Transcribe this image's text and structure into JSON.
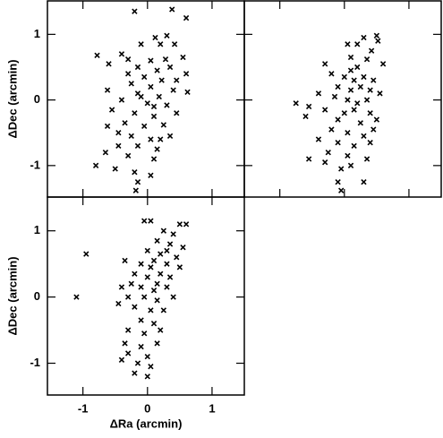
{
  "chart_data": [
    {
      "type": "scatter",
      "ylabel": "ΔDec (arcmin)",
      "xlim": [
        -1.55,
        1.5
      ],
      "ylim": [
        -1.48,
        1.51
      ],
      "xticks": [
        -1,
        0,
        1
      ],
      "yticks": [
        -1,
        0,
        1
      ],
      "xticklabels": false,
      "yticklabels": true,
      "color": "#000000",
      "x": [
        -0.2,
        0.6,
        0.38,
        0.12,
        0.3,
        -0.4,
        -0.1,
        0.2,
        0.42,
        -0.78,
        -0.3,
        0.05,
        0.28,
        0.55,
        -0.6,
        -0.15,
        0.15,
        0.35,
        -0.05,
        0.22,
        0.6,
        -0.62,
        -0.25,
        0.05,
        0.4,
        0.62,
        -0.15,
        0.18,
        -0.4,
        0.0,
        0.3,
        -0.55,
        -0.2,
        0.1,
        0.45,
        -0.35,
        -0.05,
        0.25,
        -0.62,
        -0.25,
        0.05,
        0.35,
        -0.45,
        -0.15,
        0.15,
        -0.65,
        -0.3,
        0.1,
        -0.8,
        -0.5,
        -0.2,
        0.05,
        -0.15,
        -0.18,
        -0.1,
        0.1,
        -0.3,
        0.45,
        -0.45,
        0.2
      ],
      "y": [
        1.35,
        1.25,
        1.38,
        0.95,
        0.98,
        0.7,
        0.85,
        0.85,
        0.85,
        0.68,
        0.62,
        0.6,
        0.62,
        0.65,
        0.55,
        0.5,
        0.45,
        0.5,
        0.35,
        0.3,
        0.4,
        0.15,
        0.25,
        0.2,
        0.15,
        0.12,
        0.1,
        0.05,
        0.0,
        -0.05,
        -0.08,
        -0.15,
        -0.2,
        -0.25,
        -0.2,
        -0.35,
        -0.4,
        -0.38,
        -0.4,
        -0.55,
        -0.6,
        -0.55,
        -0.7,
        -0.7,
        -0.75,
        -0.8,
        -0.85,
        -0.9,
        -1.0,
        -1.05,
        -1.1,
        -1.15,
        -1.25,
        -1.38,
        0.05,
        -0.1,
        0.4,
        0.3,
        -0.5,
        -0.6
      ]
    },
    {
      "type": "scatter",
      "xlim": [
        -1.55,
        1.5
      ],
      "ylim": [
        -1.48,
        1.51
      ],
      "xticks": [
        -1,
        0,
        1
      ],
      "yticks": [
        -1,
        0,
        1
      ],
      "xticklabels": false,
      "yticklabels": false,
      "color": "#000000",
      "x": [
        0.3,
        0.5,
        0.52,
        0.05,
        0.2,
        0.42,
        0.1,
        0.35,
        0.6,
        -0.2,
        0.0,
        0.15,
        0.3,
        0.45,
        -0.1,
        0.1,
        0.25,
        0.4,
        0.55,
        -0.4,
        -0.15,
        0.05,
        0.2,
        0.35,
        -0.75,
        -0.55,
        -0.3,
        0.0,
        0.15,
        0.4,
        -0.6,
        -0.1,
        0.25,
        0.5,
        -0.2,
        0.05,
        0.3,
        -0.4,
        -0.1,
        0.15,
        0.4,
        -0.25,
        0.05,
        -0.55,
        -0.3,
        0.1,
        -0.05,
        -0.1,
        0.3,
        -0.05,
        0.2,
        0.1,
        -0.3,
        0.35,
        0.45
      ],
      "y": [
        0.95,
        0.98,
        0.9,
        0.85,
        0.85,
        0.75,
        0.65,
        0.62,
        0.55,
        0.4,
        0.35,
        0.3,
        0.35,
        0.3,
        0.2,
        0.15,
        0.2,
        0.15,
        0.1,
        0.1,
        0.05,
        0.0,
        -0.05,
        0.0,
        -0.05,
        -0.1,
        -0.15,
        -0.2,
        -0.15,
        -0.2,
        -0.25,
        -0.3,
        -0.35,
        -0.3,
        -0.45,
        -0.5,
        -0.55,
        -0.6,
        -0.65,
        -0.7,
        -0.65,
        -0.8,
        -0.85,
        -0.9,
        -0.95,
        -1.0,
        -1.05,
        -1.25,
        -1.25,
        -1.38,
        0.5,
        0.45,
        0.55,
        -0.9,
        -0.45
      ]
    },
    {
      "type": "scatter",
      "xlabel": "ΔRa (arcmin)",
      "ylabel": "ΔDec (arcmin)",
      "xlim": [
        -1.55,
        1.5
      ],
      "ylim": [
        -1.48,
        1.51
      ],
      "xticks": [
        -1,
        0,
        1
      ],
      "yticks": [
        -1,
        0,
        1
      ],
      "xticklabels": true,
      "yticklabels": true,
      "color": "#000000",
      "x": [
        -1.1,
        -0.95,
        -0.05,
        0.05,
        0.5,
        0.6,
        0.25,
        0.4,
        0.15,
        0.35,
        0.55,
        0.0,
        0.2,
        0.45,
        -0.35,
        -0.1,
        0.1,
        0.3,
        0.5,
        -0.2,
        0.0,
        0.2,
        0.35,
        -0.4,
        -0.1,
        0.1,
        0.3,
        -0.3,
        -0.05,
        0.15,
        0.4,
        -0.45,
        -0.2,
        0.05,
        0.25,
        -0.1,
        0.1,
        -0.3,
        -0.05,
        0.2,
        -0.35,
        -0.1,
        0.15,
        -0.3,
        0.0,
        -0.4,
        -0.15,
        0.05,
        -0.2,
        0.0,
        0.15,
        0.05,
        -0.25,
        0.3
      ],
      "y": [
        0.0,
        0.65,
        1.15,
        1.15,
        1.1,
        1.1,
        1.0,
        0.95,
        0.85,
        0.8,
        0.75,
        0.7,
        0.65,
        0.6,
        0.55,
        0.5,
        0.55,
        0.5,
        0.45,
        0.35,
        0.3,
        0.35,
        0.3,
        0.15,
        0.15,
        0.1,
        0.15,
        0.0,
        0.0,
        -0.05,
        0.0,
        -0.1,
        -0.15,
        -0.2,
        -0.2,
        -0.35,
        -0.4,
        -0.5,
        -0.55,
        -0.5,
        -0.7,
        -0.75,
        -0.7,
        -0.85,
        -0.9,
        -0.95,
        -1.0,
        -1.05,
        -1.15,
        -1.2,
        0.2,
        0.45,
        0.2,
        0.7
      ]
    }
  ]
}
